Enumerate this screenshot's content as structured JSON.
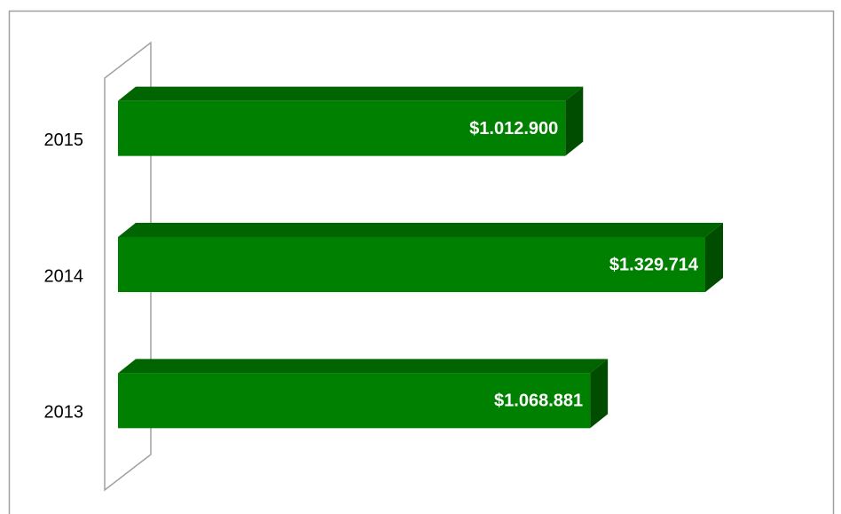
{
  "chart_data": {
    "type": "bar",
    "orientation": "horizontal",
    "categories": [
      "2013",
      "2014",
      "2015"
    ],
    "values": [
      1068881,
      1329714,
      1012900
    ],
    "value_labels": [
      "$1.068.881",
      "$1.329.714",
      "$1.012.900"
    ],
    "color": "#008000",
    "xlim": [
      0,
      1400000
    ]
  }
}
